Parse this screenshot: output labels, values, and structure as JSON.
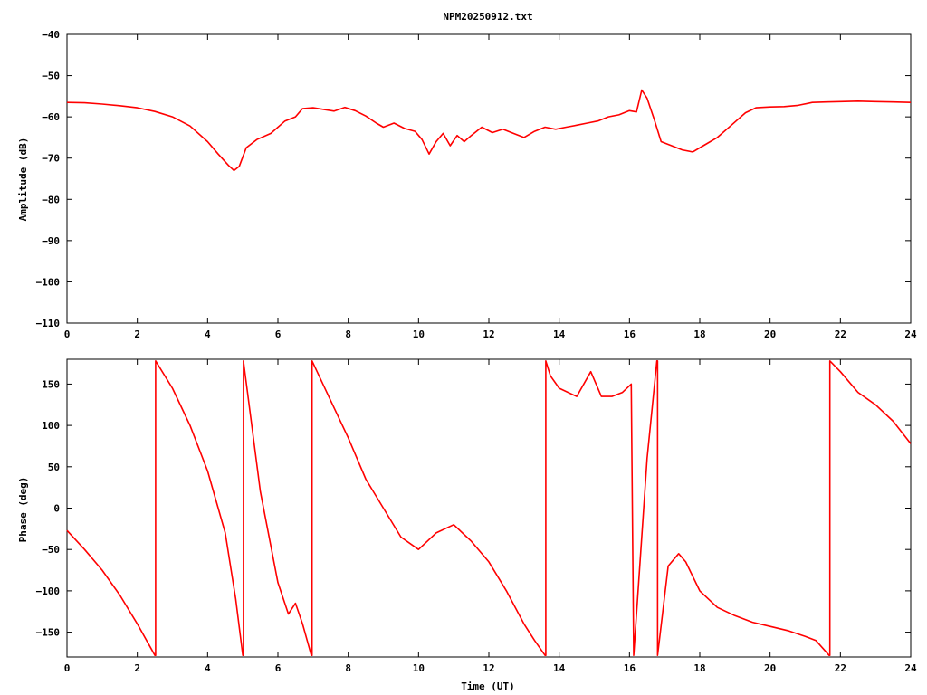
{
  "title": "NPM20250912.txt",
  "colors": {
    "trace": "#ff0000",
    "axis": "#000000",
    "background": "#ffffff"
  },
  "chart_data": [
    {
      "type": "line",
      "name": "amplitude",
      "ylabel": "Amplitude (dB)",
      "xlabel": "",
      "xlim": [
        0,
        24
      ],
      "ylim": [
        -110,
        -40
      ],
      "x_ticks": [
        "0",
        "2",
        "4",
        "6",
        "8",
        "10",
        "12",
        "14",
        "16",
        "18",
        "20",
        "22",
        "24"
      ],
      "y_ticks": [
        "-40",
        "-50",
        "-60",
        "-70",
        "-80",
        "-90",
        "-100",
        "-110"
      ],
      "series": [
        {
          "x": [
            0,
            0.5,
            1,
            1.5,
            2,
            2.5,
            3,
            3.5,
            4,
            4.3,
            4.6,
            4.75,
            4.9,
            5.1,
            5.4,
            5.8,
            6.2,
            6.5,
            6.7,
            7.0,
            7.3,
            7.6,
            7.9,
            8.2,
            8.5,
            8.8,
            9.0,
            9.3,
            9.6,
            9.9,
            10.1,
            10.3,
            10.5,
            10.7,
            10.9,
            11.1,
            11.3,
            11.5,
            11.8,
            12.1,
            12.4,
            12.7,
            13.0,
            13.3,
            13.6,
            13.9,
            14.2,
            14.5,
            14.8,
            15.1,
            15.4,
            15.7,
            16.0,
            16.2,
            16.35,
            16.5,
            16.7,
            16.9,
            17.2,
            17.5,
            17.8,
            18.1,
            18.5,
            18.9,
            19.3,
            19.6,
            20.0,
            20.4,
            20.8,
            21.2,
            21.6,
            22.0,
            22.5,
            23.0,
            23.5,
            24.0
          ],
          "y": [
            -56.5,
            -56.6,
            -56.9,
            -57.3,
            -57.8,
            -58.7,
            -60.0,
            -62.2,
            -66.0,
            -69.0,
            -71.8,
            -73.0,
            -72.0,
            -67.5,
            -65.5,
            -64.0,
            -61.0,
            -60.0,
            -58.0,
            -57.8,
            -58.2,
            -58.6,
            -57.7,
            -58.5,
            -59.8,
            -61.5,
            -62.5,
            -61.5,
            -62.8,
            -63.5,
            -65.5,
            -69.0,
            -66.0,
            -64.0,
            -67.0,
            -64.5,
            -66.0,
            -64.5,
            -62.5,
            -63.8,
            -63.0,
            -64.0,
            -65.0,
            -63.5,
            -62.5,
            -63.0,
            -62.5,
            -62.0,
            -61.5,
            -61.0,
            -60.0,
            -59.5,
            -58.5,
            -58.8,
            -53.5,
            -55.5,
            -60.5,
            -66.0,
            -67.0,
            -68.0,
            -68.5,
            -67.0,
            -65.0,
            -62.0,
            -59.0,
            -57.8,
            -57.6,
            -57.5,
            -57.2,
            -56.5,
            -56.4,
            -56.3,
            -56.2,
            -56.3,
            -56.4,
            -56.5
          ]
        }
      ]
    },
    {
      "type": "line",
      "name": "phase",
      "ylabel": "Phase (deg)",
      "xlabel": "Time (UT)",
      "xlim": [
        0,
        24
      ],
      "ylim": [
        -180,
        180
      ],
      "x_ticks": [
        "0",
        "2",
        "4",
        "6",
        "8",
        "10",
        "12",
        "14",
        "16",
        "18",
        "20",
        "22",
        "24"
      ],
      "y_ticks": [
        "150",
        "100",
        "50",
        "0",
        "-50",
        "-100",
        "-150"
      ],
      "series": [
        {
          "x": [
            0,
            0.5,
            1,
            1.5,
            2,
            2.5,
            2.52,
            2.52,
            3,
            3.5,
            4,
            4.5,
            4.8,
            5.0,
            5.02,
            5.02,
            5.5,
            6,
            6.3,
            6.5,
            6.7,
            6.95,
            6.97,
            6.97,
            7.5,
            8,
            8.5,
            9,
            9.5,
            10,
            10.5,
            11,
            11.5,
            12,
            12.5,
            13,
            13.3,
            13.6,
            13.62,
            13.62,
            13.75,
            14,
            14.5,
            14.9,
            15.2,
            15.5,
            15.8,
            16.05,
            16.12,
            16.12,
            16.5,
            16.78,
            16.8,
            16.8,
            17.1,
            17.4,
            17.6,
            18,
            18.5,
            19,
            19.5,
            20,
            20.5,
            21,
            21.3,
            21.68,
            21.7,
            21.7,
            22,
            22.5,
            23,
            23.5,
            24
          ],
          "y": [
            -27,
            -50,
            -75,
            -105,
            -140,
            -178,
            -178,
            178,
            145,
            100,
            45,
            -30,
            -110,
            -178,
            -178,
            178,
            20,
            -90,
            -128,
            -115,
            -140,
            -178,
            -178,
            178,
            130,
            85,
            35,
            0,
            -35,
            -50,
            -30,
            -20,
            -40,
            -65,
            -100,
            -140,
            -160,
            -178,
            -178,
            178,
            160,
            145,
            135,
            165,
            135,
            135,
            140,
            150,
            -178,
            -178,
            60,
            178,
            178,
            -178,
            -70,
            -55,
            -65,
            -100,
            -120,
            -130,
            -138,
            -143,
            -148,
            -155,
            -160,
            -178,
            -178,
            178,
            165,
            140,
            125,
            105,
            78
          ]
        }
      ]
    }
  ]
}
